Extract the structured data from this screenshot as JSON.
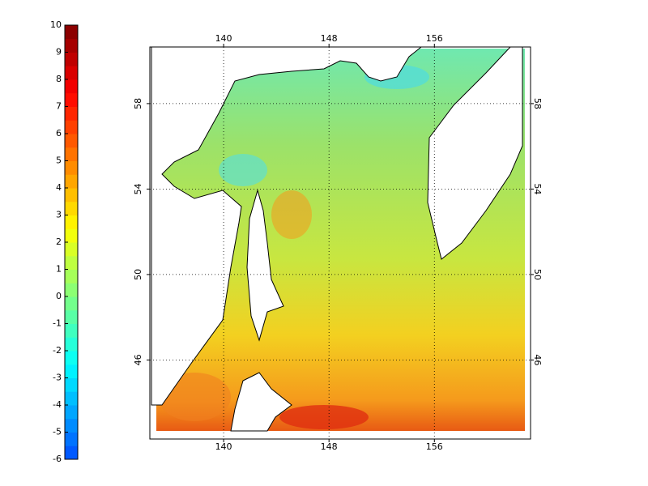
{
  "colorbar": {
    "lim": [
      -6,
      10
    ],
    "ticks": [
      -6,
      -5,
      -4,
      -3,
      -2,
      -1,
      0,
      1,
      2,
      3,
      4,
      5,
      6,
      7,
      8,
      9,
      10
    ],
    "colormap": "jet"
  },
  "map": {
    "xlim": [
      134.4,
      163.3
    ],
    "ylim": [
      42.3,
      60.65
    ],
    "lon_ticks": [
      140,
      148,
      156
    ],
    "lat_ticks": [
      46,
      50,
      54,
      58
    ],
    "grid": true
  }
}
